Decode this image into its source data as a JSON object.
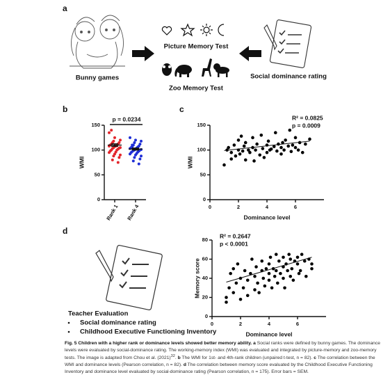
{
  "panel_labels": [
    "a",
    "b",
    "c",
    "d"
  ],
  "panel_a": {
    "left_label": "Bunny games",
    "top_label": "Picture Memory Test",
    "bottom_label": "Zoo Memory Test",
    "right_label": "Social dominance rating"
  },
  "panel_d_text": {
    "heading": "Teacher Evaluation",
    "items": [
      "Social dominance rating",
      "Childhood Executive Functioning Inventory"
    ]
  },
  "chart_data": [
    {
      "type": "strip",
      "ylabel": "WMI",
      "categories": [
        "Rank 1",
        "Rank 4"
      ],
      "annotation": "p = 0.0234",
      "ylim": [
        0,
        150
      ],
      "yticks": [
        0,
        50,
        100,
        150
      ],
      "series": [
        {
          "color": "#e3262c",
          "values": [
            135,
            125,
            120,
            118,
            115,
            115,
            112,
            112,
            110,
            110,
            108,
            108,
            107,
            105,
            105,
            104,
            103,
            102,
            100,
            100,
            98,
            96,
            95,
            92,
            90,
            88,
            85,
            80,
            75,
            140
          ],
          "mean": 110,
          "error": 2.5
        },
        {
          "color": "#1f2fd6",
          "values": [
            125,
            120,
            118,
            115,
            112,
            110,
            108,
            107,
            106,
            105,
            104,
            103,
            102,
            101,
            100,
            100,
            99,
            98,
            97,
            96,
            95,
            93,
            92,
            90,
            88,
            85,
            82,
            78,
            72,
            110
          ],
          "mean": 102,
          "error": 2
        }
      ]
    },
    {
      "type": "scatter",
      "ylabel": "WMI",
      "xlabel": "Dominance level",
      "color": "#000000",
      "annotations": [
        "R² = 0.0825",
        "p = 0.0009"
      ],
      "xlim": [
        0,
        8
      ],
      "xticks": [
        0,
        2,
        4,
        6
      ],
      "ylim": [
        0,
        150
      ],
      "yticks": [
        0,
        50,
        100,
        150
      ],
      "x": [
        1,
        1.2,
        1.3,
        1.5,
        1.5,
        1.7,
        1.8,
        2,
        2,
        2.1,
        2.2,
        2.3,
        2.4,
        2.5,
        2.5,
        2.7,
        2.8,
        3,
        3,
        3.1,
        3.2,
        3.3,
        3.5,
        3.6,
        3.7,
        3.8,
        4,
        4,
        4.1,
        4.2,
        4.3,
        4.5,
        4.6,
        4.7,
        4.8,
        5,
        5,
        5.1,
        5.2,
        5.3,
        5.5,
        5.6,
        5.7,
        5.8,
        6,
        6,
        6.2,
        6.3,
        6.5,
        6.7,
        7
      ],
      "values": [
        70,
        100,
        105,
        95,
        82,
        110,
        88,
        100,
        120,
        92,
        128,
        98,
        108,
        80,
        115,
        100,
        95,
        125,
        105,
        78,
        100,
        112,
        90,
        130,
        103,
        85,
        110,
        95,
        118,
        100,
        102,
        107,
        135,
        98,
        112,
        105,
        92,
        115,
        100,
        120,
        108,
        140,
        97,
        110,
        105,
        125,
        100,
        115,
        95,
        112,
        122
      ],
      "trendline": {
        "x": [
          1,
          7
        ],
        "values": [
          99,
          118
        ]
      }
    },
    {
      "type": "scatter",
      "ylabel": "Memory score",
      "xlabel": "Dominance level",
      "color": "#000000",
      "annotations": [
        "R² = 0.2647",
        "p < 0.0001"
      ],
      "xlim": [
        0,
        8
      ],
      "xticks": [
        0,
        2,
        4,
        6
      ],
      "ylim": [
        0,
        80
      ],
      "yticks": [
        0,
        20,
        40,
        60,
        80
      ],
      "x": [
        1,
        1,
        1.2,
        1.3,
        1.5,
        1.5,
        1.7,
        1.8,
        2,
        2,
        2.2,
        2.3,
        2.5,
        2.5,
        2.7,
        2.8,
        3,
        3,
        3.1,
        3.2,
        3.3,
        3.5,
        3.5,
        3.6,
        3.7,
        3.8,
        4,
        4,
        4,
        4.1,
        4.2,
        4.3,
        4.4,
        4.5,
        4.5,
        4.6,
        4.7,
        4.8,
        5,
        5,
        5,
        5.1,
        5.2,
        5.3,
        5.4,
        5.5,
        5.5,
        5.6,
        5.7,
        5.8,
        6,
        6,
        6.1,
        6.2,
        6.3,
        6.5,
        6.6,
        6.8,
        7,
        7
      ],
      "values": [
        15,
        20,
        30,
        45,
        25,
        50,
        35,
        55,
        18,
        40,
        30,
        48,
        22,
        38,
        45,
        60,
        28,
        42,
        52,
        35,
        25,
        48,
        58,
        40,
        32,
        50,
        45,
        55,
        38,
        62,
        30,
        50,
        42,
        65,
        48,
        35,
        58,
        45,
        52,
        62,
        40,
        30,
        55,
        48,
        65,
        60,
        42,
        50,
        38,
        58,
        55,
        62,
        45,
        48,
        65,
        58,
        42,
        60,
        55,
        50
      ],
      "trendline": {
        "x": [
          1,
          7
        ],
        "values": [
          36,
          62
        ]
      }
    }
  ],
  "caption": {
    "title": "Fig. 5 Children with a higher rank or dominance levels showed better memory ability.",
    "segments": [
      {
        "label": "a",
        "text": "Social ranks were defined by bunny games. The dominance levels were evaluated by social-dominance rating. The working-memory index (WMI) was evaluated and integrated by picture-memory and zoo-memory tests. The image is adapted from Chou et al. (2021)",
        "ref": "32",
        "tail": "."
      },
      {
        "label": "b",
        "text": "The WMI for 1st- and 4th-rank children (unpaired t-test, n = 82)."
      },
      {
        "label": "c",
        "text": "The correlation between the WMI and dominance levels (Pearson correlation, n = 82)."
      },
      {
        "label": "d",
        "text": "The correlation between memory score evaluated by the Childhood Executive Functioning Inventory and dominance level evaluated by social-dominance rating (Pearson correlation, n = 175). Error bars = SEM."
      }
    ]
  }
}
